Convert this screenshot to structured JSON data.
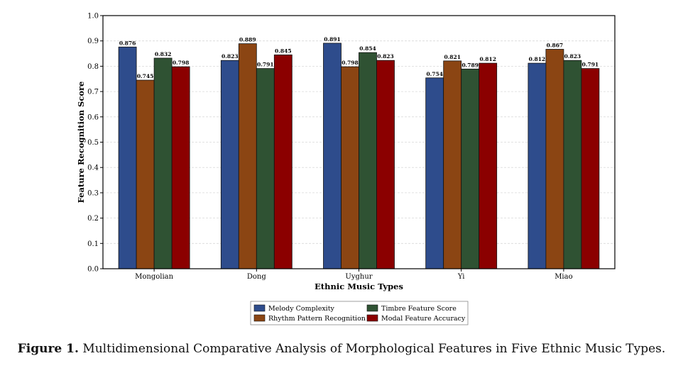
{
  "caption": {
    "label": "Figure 1.",
    "text": "Multidimensional Comparative Analysis of Morphological Features in Five Ethnic Music Types."
  },
  "chart_data": {
    "type": "bar",
    "categories": [
      "Mongolian",
      "Dong",
      "Uyghur",
      "Yi",
      "Miao"
    ],
    "series": [
      {
        "name": "Melody Complexity",
        "color": "#2e4c8c",
        "values": [
          0.876,
          0.823,
          0.891,
          0.754,
          0.812
        ]
      },
      {
        "name": "Rhythm Pattern Recognition",
        "color": "#8b4513",
        "values": [
          0.745,
          0.889,
          0.798,
          0.821,
          0.867
        ]
      },
      {
        "name": "Timbre Feature Score",
        "color": "#2f5233",
        "values": [
          0.832,
          0.791,
          0.854,
          0.789,
          0.823
        ]
      },
      {
        "name": "Modal Feature Accuracy",
        "color": "#8b0000",
        "values": [
          0.798,
          0.845,
          0.823,
          0.812,
          0.791
        ]
      }
    ],
    "xlabel": "Ethnic Music Types",
    "ylabel": "Feature Recognition Score",
    "ylim": [
      0,
      1.0
    ],
    "yticks": [
      "0.0",
      "0.1",
      "0.2",
      "0.3",
      "0.4",
      "0.5",
      "0.6",
      "0.7",
      "0.8",
      "0.9",
      "1.0"
    ],
    "grid": "horizontal",
    "legend": "bottom-center"
  }
}
